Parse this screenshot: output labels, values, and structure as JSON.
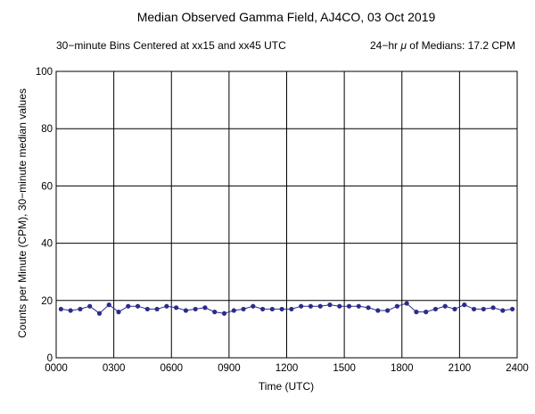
{
  "chart_data": {
    "type": "line",
    "title": "Median Observed Gamma Field, AJ4CO, 03 Oct 2019",
    "subtitle_left": "30−minute Bins Centered at xx15 and xx45 UTC",
    "subtitle_right_prefix": "24−hr ",
    "subtitle_right_mu": "μ",
    "subtitle_right_suffix": " of Medians: 17.2 CPM",
    "xlabel": "Time (UTC)",
    "ylabel": "Counts per Minute (CPM), 30−minute median values",
    "xlim": [
      0,
      24
    ],
    "ylim": [
      0,
      100
    ],
    "x_ticks": [
      0,
      3,
      6,
      9,
      12,
      15,
      18,
      21,
      24
    ],
    "x_tick_labels": [
      "0000",
      "0300",
      "0600",
      "0900",
      "1200",
      "1500",
      "1800",
      "2100",
      "2400"
    ],
    "y_ticks": [
      0,
      20,
      40,
      60,
      80,
      100
    ],
    "y_tick_labels": [
      "0",
      "20",
      "40",
      "60",
      "80",
      "100"
    ],
    "grid": true,
    "series": [
      {
        "color": "#2b2b8a",
        "x": [
          0.25,
          0.75,
          1.25,
          1.75,
          2.25,
          2.75,
          3.25,
          3.75,
          4.25,
          4.75,
          5.25,
          5.75,
          6.25,
          6.75,
          7.25,
          7.75,
          8.25,
          8.75,
          9.25,
          9.75,
          10.25,
          10.75,
          11.25,
          11.75,
          12.25,
          12.75,
          13.25,
          13.75,
          14.25,
          14.75,
          15.25,
          15.75,
          16.25,
          16.75,
          17.25,
          17.75,
          18.25,
          18.75,
          19.25,
          19.75,
          20.25,
          20.75,
          21.25,
          21.75,
          22.25,
          22.75,
          23.25,
          23.75
        ],
        "y": [
          17.0,
          16.5,
          17.0,
          18.0,
          15.5,
          18.5,
          16.0,
          18.0,
          18.0,
          17.0,
          17.0,
          18.0,
          17.5,
          16.5,
          17.0,
          17.5,
          16.0,
          15.5,
          16.5,
          17.0,
          18.0,
          17.0,
          17.0,
          17.0,
          17.0,
          18.0,
          18.0,
          18.0,
          18.5,
          18.0,
          18.0,
          18.0,
          17.5,
          16.5,
          16.5,
          18.0,
          19.0,
          16.0,
          16.0,
          17.0,
          18.0,
          17.0,
          18.5,
          17.0,
          17.0,
          17.5,
          16.5,
          17.0
        ]
      }
    ]
  }
}
